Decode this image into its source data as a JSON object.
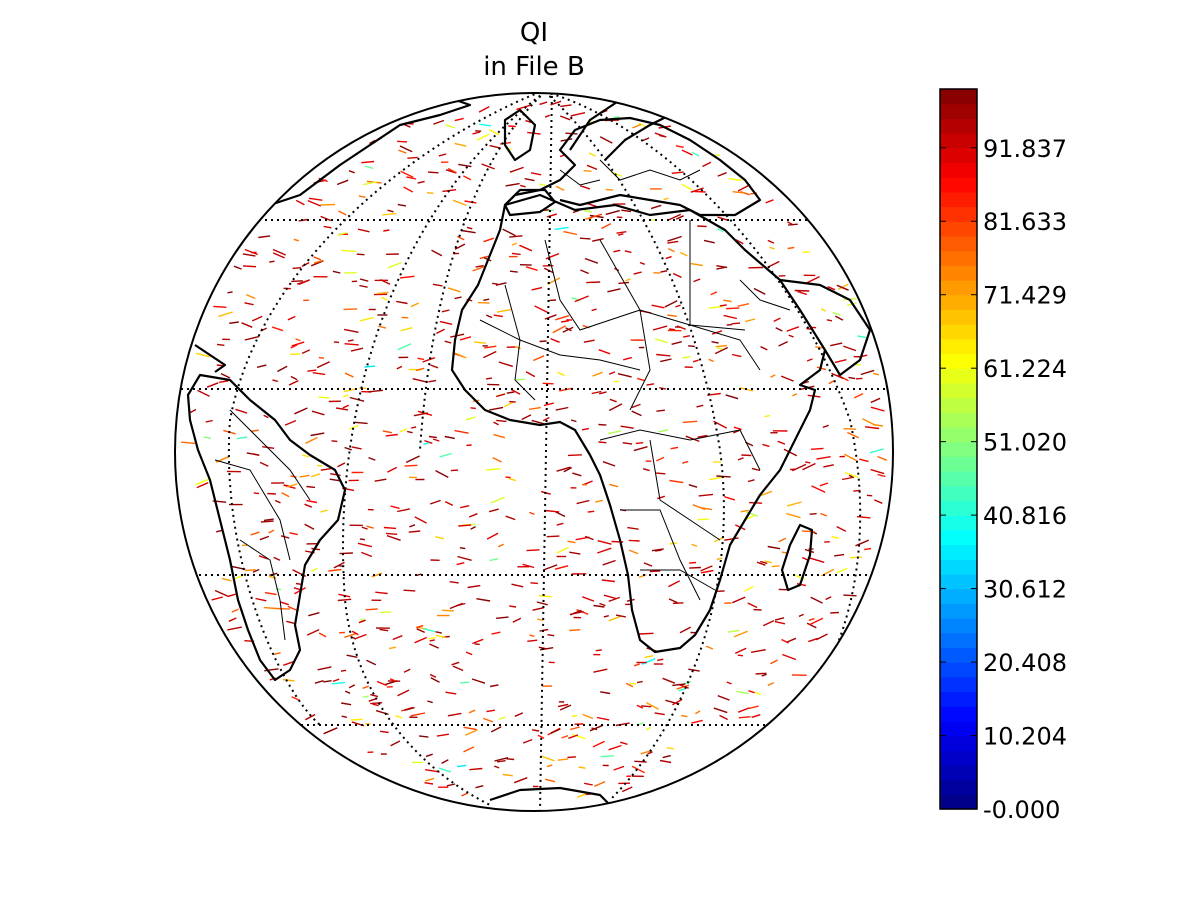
{
  "title": [
    "QI",
    "in File B"
  ],
  "colorbar": {
    "min": -0.0,
    "max": 100.0,
    "tick_values": [
      0.0,
      10.204,
      20.408,
      30.612,
      40.816,
      51.02,
      61.224,
      71.429,
      81.633,
      91.837
    ],
    "tick_labels": [
      "-0.000",
      "10.204",
      "20.408",
      "30.612",
      "40.816",
      "51.020",
      "61.224",
      "71.429",
      "81.633",
      "91.837"
    ],
    "colormap": "jet"
  },
  "map": {
    "projection": "orthographic",
    "center_lon": 0,
    "center_lat": 0,
    "graticule": "dotted",
    "coastlines": true,
    "country_borders": true
  }
}
